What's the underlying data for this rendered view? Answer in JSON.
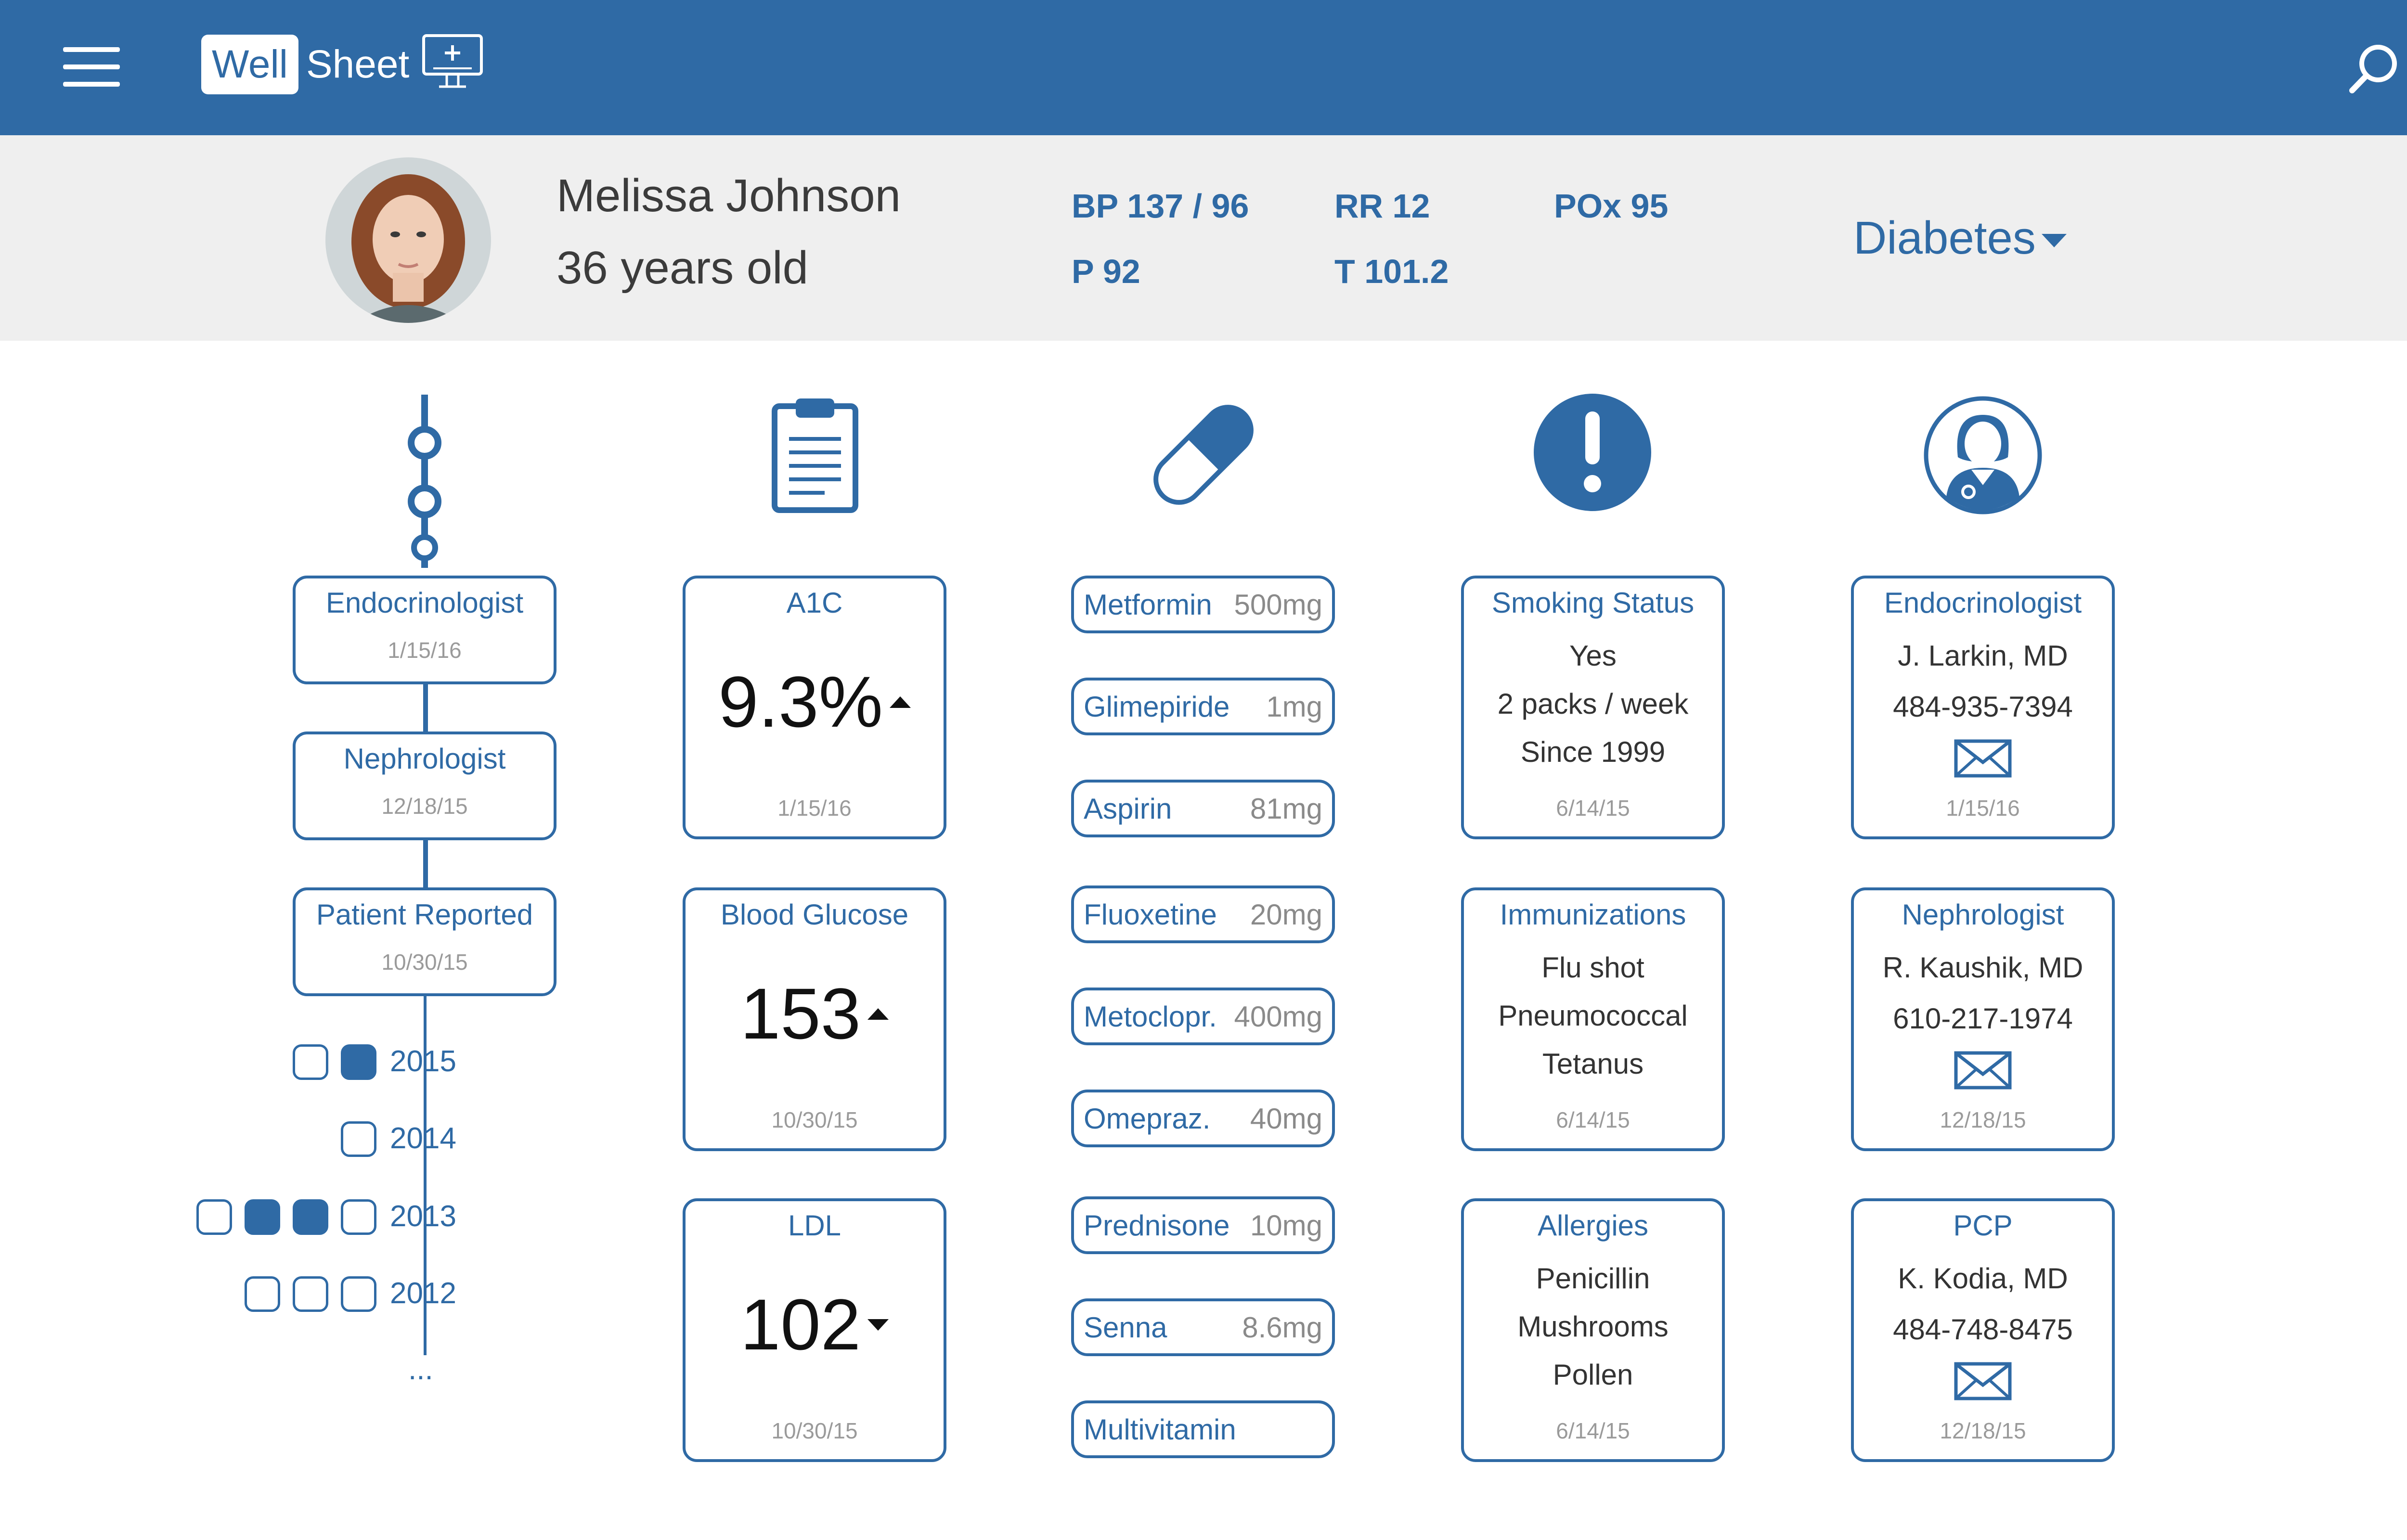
{
  "app": {
    "logo_word1": "Well",
    "logo_word2": "Sheet"
  },
  "patient": {
    "name": "Melissa Johnson",
    "age": "36 years old",
    "vitals": {
      "bp": "BP 137 / 96",
      "rr": "RR 12",
      "pox": "POx 95",
      "p": "P 92",
      "t": "T 101.2"
    },
    "condition": "Diabetes"
  },
  "timeline": {
    "visits": [
      {
        "title": "Endocrinologist",
        "date": "1/15/16"
      },
      {
        "title": "Nephrologist",
        "date": "12/18/15"
      },
      {
        "title": "Patient Reported",
        "date": "10/30/15"
      }
    ],
    "years": [
      {
        "label": "2015",
        "boxes": [
          false,
          true
        ]
      },
      {
        "label": "2014",
        "boxes": [
          false
        ]
      },
      {
        "label": "2013",
        "boxes": [
          false,
          true,
          true,
          false
        ]
      },
      {
        "label": "2012",
        "boxes": [
          false,
          false,
          false
        ]
      }
    ],
    "more": "..."
  },
  "labs": [
    {
      "title": "A1C",
      "value": "9.3%",
      "trend": "up",
      "date": "1/15/16"
    },
    {
      "title": "Blood Glucose",
      "value": "153",
      "trend": "up",
      "date": "10/30/15"
    },
    {
      "title": "LDL",
      "value": "102",
      "trend": "down",
      "date": "10/30/15"
    }
  ],
  "medications": [
    {
      "name": "Metformin",
      "dose": "500mg"
    },
    {
      "name": "Glimepiride",
      "dose": "1mg"
    },
    {
      "name": "Aspirin",
      "dose": "81mg"
    },
    {
      "name": "Fluoxetine",
      "dose": "20mg"
    },
    {
      "name": "Metoclopr.",
      "dose": "400mg"
    },
    {
      "name": "Omepraz.",
      "dose": "40mg"
    },
    {
      "name": "Prednisone",
      "dose": "10mg"
    },
    {
      "name": "Senna",
      "dose": "8.6mg"
    },
    {
      "name": "Multivitamin",
      "dose": ""
    }
  ],
  "alerts": [
    {
      "title": "Smoking Status",
      "lines": [
        "Yes",
        "2 packs / week",
        "Since 1999"
      ],
      "date": "6/14/15"
    },
    {
      "title": "Immunizations",
      "lines": [
        "Flu shot",
        "Pneumococcal",
        "Tetanus"
      ],
      "date": "6/14/15"
    },
    {
      "title": "Allergies",
      "lines": [
        "Penicillin",
        "Mushrooms",
        "Pollen"
      ],
      "date": "6/14/15"
    }
  ],
  "providers": [
    {
      "title": "Endocrinologist",
      "name": "J. Larkin, MD",
      "phone": "484-935-7394",
      "date": "1/15/16"
    },
    {
      "title": "Nephrologist",
      "name": "R. Kaushik, MD",
      "phone": "610-217-1974",
      "date": "12/18/15"
    },
    {
      "title": "PCP",
      "name": "K. Kodia, MD",
      "phone": "484-748-8475",
      "date": "12/18/15"
    }
  ],
  "icons": {
    "menu": "hamburger-menu-icon",
    "logo": "monitor-plus-icon",
    "search": "search-icon",
    "timeline": "timeline-icon",
    "labs": "clipboard-icon",
    "meds": "pill-capsule-icon",
    "alerts": "exclamation-icon",
    "providers": "doctor-icon",
    "mail": "mail-icon"
  },
  "colors": {
    "primary": "#2f6aa5",
    "header_bg": "#2f6aa5",
    "patient_bar_bg": "#efefef",
    "muted_text": "#9a9a9a"
  }
}
